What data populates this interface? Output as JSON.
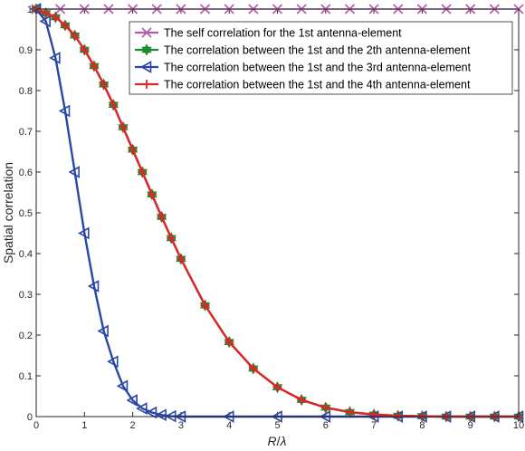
{
  "chart_data": {
    "type": "line",
    "title": "",
    "xlabel": "R/λ",
    "xlabel_var": "R",
    "xlabel_sep": "/",
    "xlabel_sym": "λ",
    "ylabel": "Spatial correlation",
    "xlim": [
      0,
      10
    ],
    "ylim": [
      0,
      1
    ],
    "xticks": [
      "0",
      "1",
      "2",
      "3",
      "4",
      "5",
      "6",
      "7",
      "8",
      "9",
      "10"
    ],
    "yticks": [
      "0",
      "0.1",
      "0.2",
      "0.3",
      "0.4",
      "0.5",
      "0.6",
      "0.7",
      "0.8",
      "0.9",
      "1"
    ],
    "grid": false,
    "legend_position": "top-right",
    "series": [
      {
        "name": "The self correlation for the 1st antenna-element",
        "color": "#b45aa8",
        "marker": "x",
        "x": [
          0,
          0.5,
          1,
          1.5,
          2,
          2.5,
          3,
          3.5,
          4,
          4.5,
          5,
          5.5,
          6,
          6.5,
          7,
          7.5,
          8,
          8.5,
          9,
          9.5,
          10
        ],
        "y": [
          1,
          1,
          1,
          1,
          1,
          1,
          1,
          1,
          1,
          1,
          1,
          1,
          1,
          1,
          1,
          1,
          1,
          1,
          1,
          1,
          1
        ]
      },
      {
        "name": "The correlation between the 1st and the 2th antenna-element",
        "color": "#1e8a2e",
        "marker": "hexagram",
        "x": [
          0,
          0.2,
          0.4,
          0.6,
          0.8,
          1.0,
          1.2,
          1.4,
          1.6,
          1.8,
          2.0,
          2.2,
          2.4,
          2.6,
          2.8,
          3.0,
          3.5,
          4.0,
          4.5,
          5.0,
          5.5,
          6.0,
          6.5,
          7.0,
          7.5,
          8.0,
          8.5,
          9.0,
          9.5,
          10.0
        ],
        "y": [
          1.0,
          0.99,
          0.98,
          0.96,
          0.935,
          0.9,
          0.86,
          0.815,
          0.765,
          0.71,
          0.655,
          0.6,
          0.545,
          0.49,
          0.438,
          0.387,
          0.273,
          0.183,
          0.118,
          0.072,
          0.041,
          0.022,
          0.011,
          0.005,
          0.002,
          0.001,
          0.0,
          0.0,
          0.0,
          0.0
        ]
      },
      {
        "name": "The correlation between the 1st and the 3rd antenna-element",
        "color": "#2a46a8",
        "marker": "triangle-left",
        "x": [
          0,
          0.2,
          0.4,
          0.6,
          0.8,
          1.0,
          1.2,
          1.4,
          1.6,
          1.8,
          2.0,
          2.2,
          2.4,
          2.6,
          2.8,
          3.0,
          4.0,
          5.0,
          6.0,
          7.0,
          7.5,
          8.0,
          8.5,
          9.0,
          9.5,
          10.0
        ],
        "y": [
          1.0,
          0.97,
          0.88,
          0.75,
          0.6,
          0.45,
          0.32,
          0.21,
          0.135,
          0.075,
          0.04,
          0.02,
          0.01,
          0.004,
          0.001,
          0.0,
          0.0,
          0.0,
          0.0,
          0.0,
          0.0,
          0.0,
          0.0,
          0.0,
          0.0,
          0.0
        ]
      },
      {
        "name": "The correlation between the 1st and the 4th antenna-element",
        "color": "#e0252a",
        "marker": "plus",
        "x": [
          0,
          0.2,
          0.4,
          0.6,
          0.8,
          1.0,
          1.2,
          1.4,
          1.6,
          1.8,
          2.0,
          2.2,
          2.4,
          2.6,
          2.8,
          3.0,
          3.5,
          4.0,
          4.5,
          5.0,
          5.5,
          6.0,
          6.5,
          7.0,
          7.5,
          8.0,
          8.5,
          9.0,
          9.5,
          10.0
        ],
        "y": [
          1.0,
          0.99,
          0.98,
          0.96,
          0.935,
          0.9,
          0.86,
          0.815,
          0.765,
          0.71,
          0.655,
          0.6,
          0.545,
          0.49,
          0.438,
          0.387,
          0.273,
          0.183,
          0.118,
          0.072,
          0.041,
          0.022,
          0.011,
          0.005,
          0.002,
          0.001,
          0.0,
          0.0,
          0.0,
          0.0
        ]
      }
    ]
  }
}
